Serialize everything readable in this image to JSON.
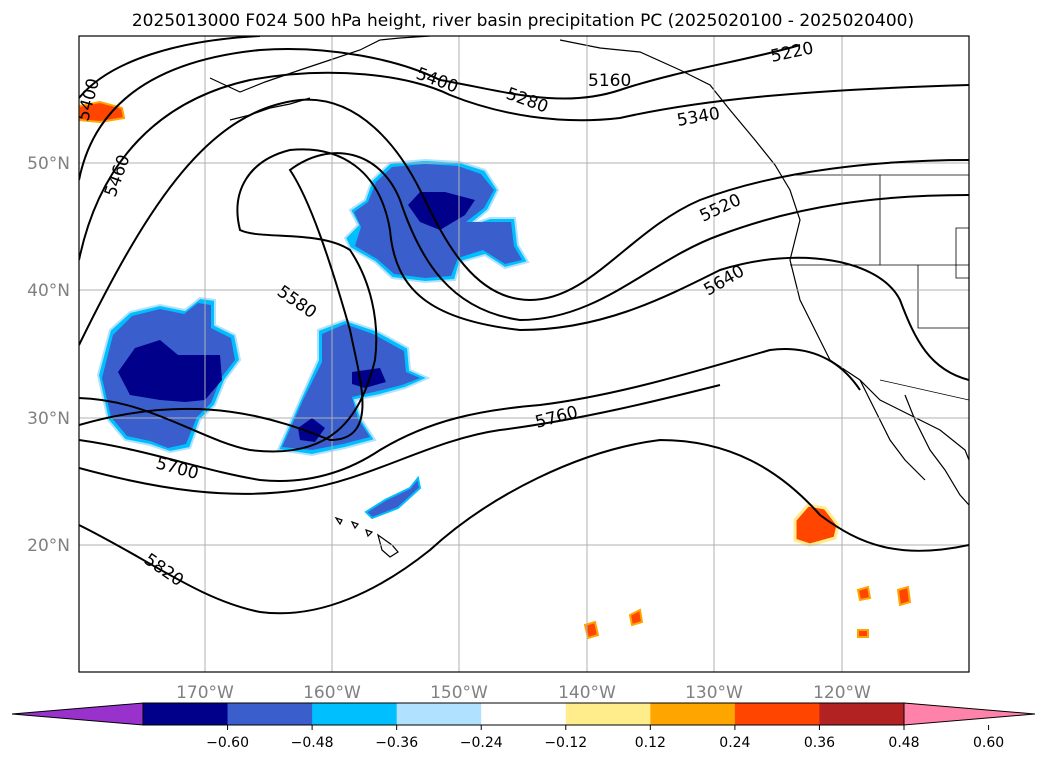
{
  "title": "2025013000 F024 500 hPa height, river basin precipitation PC (2025020100 - 2025020400)",
  "map": {
    "lon_ticks": [
      "170°W",
      "160°W",
      "150°W",
      "140°W",
      "130°W",
      "120°W"
    ],
    "lat_ticks": [
      "50°N",
      "40°N",
      "30°N",
      "20°N"
    ],
    "grid": true,
    "contour_color": "#000000",
    "contour_labels": [
      {
        "text": "5220"
      },
      {
        "text": "5160"
      },
      {
        "text": "5280"
      },
      {
        "text": "5400"
      },
      {
        "text": "5340"
      },
      {
        "text": "5460"
      },
      {
        "text": "5520"
      },
      {
        "text": "5580"
      },
      {
        "text": "5640"
      },
      {
        "text": "5700"
      },
      {
        "text": "5760"
      },
      {
        "text": "5820"
      },
      {
        "text": "5400"
      }
    ]
  },
  "colorbar": {
    "extend": "both",
    "tick_labels": [
      "−0.60",
      "−0.48",
      "−0.36",
      "−0.24",
      "−0.12",
      "0.12",
      "0.24",
      "0.36",
      "0.48",
      "0.60"
    ],
    "colors": [
      "#9932cc",
      "#00008b",
      "#3a5fcd",
      "#00bfff",
      "#b0e2ff",
      "#ffffff",
      "#ffec8b",
      "#ffa500",
      "#ff4500",
      "#b22222",
      "#ff82ab"
    ]
  }
}
